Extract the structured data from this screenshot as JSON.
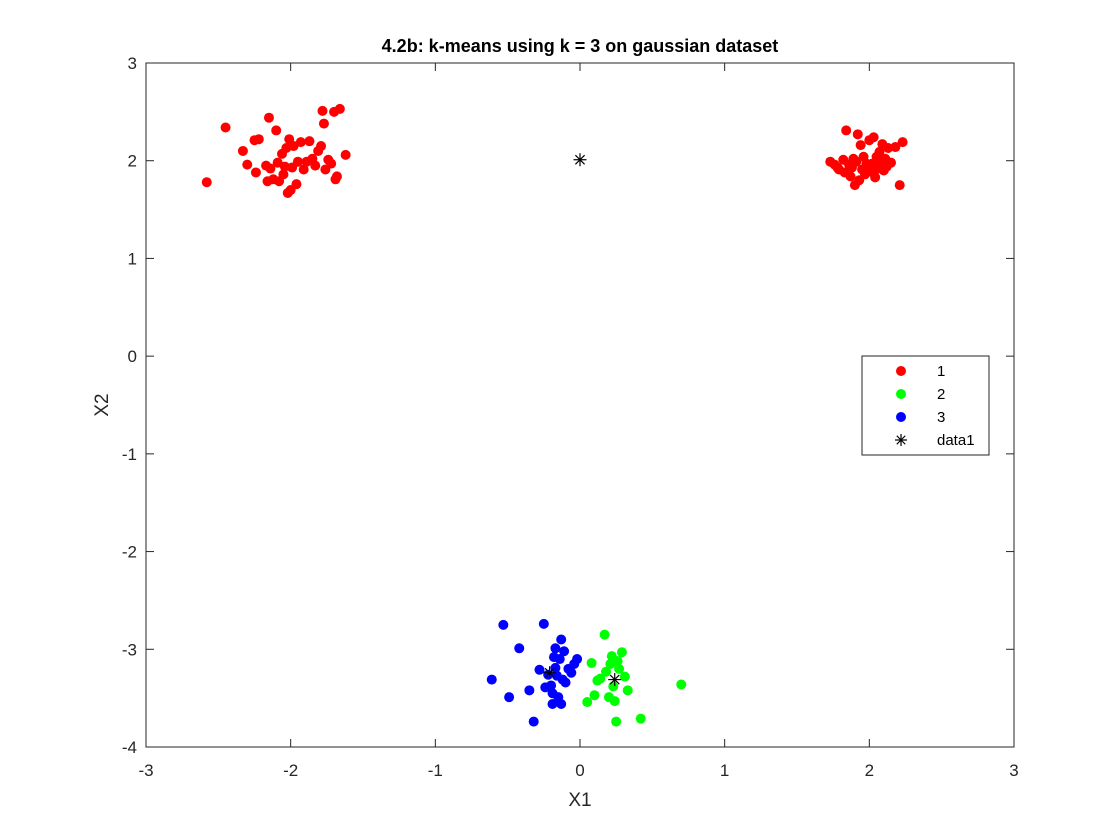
{
  "chart_data": {
    "type": "scatter",
    "title": "4.2b: k-means using k = 3 on gaussian dataset",
    "xlabel": "X1",
    "ylabel": "X2",
    "xlim": [
      -3,
      3
    ],
    "ylim": [
      -4,
      3
    ],
    "xticks": [
      "-3",
      "-2",
      "-1",
      "0",
      "1",
      "2",
      "3"
    ],
    "yticks": [
      "-4",
      "-3",
      "-2",
      "-1",
      "0",
      "1",
      "2",
      "3"
    ],
    "grid": false,
    "legend_position": "right",
    "series": [
      {
        "name": "1",
        "color": "#ff0000",
        "marker": "filled-circle",
        "points": [
          [
            -2.58,
            1.78
          ],
          [
            -2.45,
            2.34
          ],
          [
            -2.33,
            2.1
          ],
          [
            -2.3,
            1.96
          ],
          [
            -2.25,
            2.21
          ],
          [
            -2.24,
            1.88
          ],
          [
            -2.22,
            2.22
          ],
          [
            -2.17,
            1.95
          ],
          [
            -2.16,
            1.79
          ],
          [
            -2.15,
            2.44
          ],
          [
            -2.14,
            1.92
          ],
          [
            -2.12,
            1.81
          ],
          [
            -2.1,
            2.31
          ],
          [
            -2.09,
            1.98
          ],
          [
            -2.08,
            1.79
          ],
          [
            -2.06,
            2.07
          ],
          [
            -2.05,
            1.86
          ],
          [
            -2.04,
            1.94
          ],
          [
            -2.03,
            2.13
          ],
          [
            -2.02,
            1.67
          ],
          [
            -2.01,
            2.22
          ],
          [
            -2.0,
            1.7
          ],
          [
            -1.99,
            1.93
          ],
          [
            -1.98,
            2.15
          ],
          [
            -1.96,
            1.76
          ],
          [
            -1.95,
            1.99
          ],
          [
            -1.93,
            2.19
          ],
          [
            -1.91,
            1.91
          ],
          [
            -1.89,
            1.99
          ],
          [
            -1.87,
            2.2
          ],
          [
            -1.85,
            2.02
          ],
          [
            -1.83,
            1.95
          ],
          [
            -1.81,
            2.1
          ],
          [
            -1.79,
            2.15
          ],
          [
            -1.78,
            2.51
          ],
          [
            -1.77,
            2.38
          ],
          [
            -1.76,
            1.91
          ],
          [
            -1.74,
            2.01
          ],
          [
            -1.72,
            1.97
          ],
          [
            -1.7,
            2.5
          ],
          [
            -1.69,
            1.81
          ],
          [
            -1.68,
            1.84
          ],
          [
            -1.66,
            2.53
          ],
          [
            -1.62,
            2.06
          ],
          [
            1.73,
            1.99
          ],
          [
            1.76,
            1.96
          ],
          [
            1.78,
            1.93
          ],
          [
            1.79,
            1.91
          ],
          [
            1.82,
            2.01
          ],
          [
            1.83,
            1.88
          ],
          [
            1.84,
            2.31
          ],
          [
            1.86,
            1.96
          ],
          [
            1.87,
            1.84
          ],
          [
            1.88,
            1.93
          ],
          [
            1.89,
            2.02
          ],
          [
            1.9,
            1.75
          ],
          [
            1.91,
            1.99
          ],
          [
            1.92,
            2.27
          ],
          [
            1.93,
            1.8
          ],
          [
            1.94,
            2.16
          ],
          [
            1.95,
            1.91
          ],
          [
            1.96,
            2.04
          ],
          [
            1.97,
            1.86
          ],
          [
            1.98,
            1.97
          ],
          [
            2.0,
            2.21
          ],
          [
            2.01,
            1.89
          ],
          [
            2.02,
            1.97
          ],
          [
            2.03,
            2.24
          ],
          [
            2.04,
            1.83
          ],
          [
            2.05,
            2.04
          ],
          [
            2.06,
            1.92
          ],
          [
            2.07,
            2.09
          ],
          [
            2.08,
            1.97
          ],
          [
            2.09,
            2.17
          ],
          [
            2.1,
            1.9
          ],
          [
            2.11,
            2.02
          ],
          [
            2.12,
            1.94
          ],
          [
            2.13,
            2.13
          ],
          [
            2.15,
            1.98
          ],
          [
            2.18,
            2.14
          ],
          [
            2.21,
            1.75
          ],
          [
            2.23,
            2.19
          ]
        ]
      },
      {
        "name": "2",
        "color": "#00ff00",
        "marker": "filled-circle",
        "points": [
          [
            0.05,
            -3.54
          ],
          [
            0.08,
            -3.14
          ],
          [
            0.1,
            -3.47
          ],
          [
            0.12,
            -3.32
          ],
          [
            0.14,
            -3.3
          ],
          [
            0.17,
            -2.85
          ],
          [
            0.18,
            -3.23
          ],
          [
            0.2,
            -3.49
          ],
          [
            0.21,
            -3.15
          ],
          [
            0.22,
            -3.07
          ],
          [
            0.23,
            -3.38
          ],
          [
            0.24,
            -3.53
          ],
          [
            0.25,
            -3.74
          ],
          [
            0.26,
            -3.12
          ],
          [
            0.27,
            -3.2
          ],
          [
            0.29,
            -3.03
          ],
          [
            0.31,
            -3.28
          ],
          [
            0.33,
            -3.42
          ],
          [
            0.42,
            -3.71
          ],
          [
            0.7,
            -3.36
          ]
        ]
      },
      {
        "name": "3",
        "color": "#0000ff",
        "marker": "filled-circle",
        "points": [
          [
            -0.61,
            -3.31
          ],
          [
            -0.53,
            -2.75
          ],
          [
            -0.49,
            -3.49
          ],
          [
            -0.42,
            -2.99
          ],
          [
            -0.35,
            -3.42
          ],
          [
            -0.32,
            -3.74
          ],
          [
            -0.28,
            -3.21
          ],
          [
            -0.25,
            -2.74
          ],
          [
            -0.24,
            -3.39
          ],
          [
            -0.22,
            -3.26
          ],
          [
            -0.2,
            -3.37
          ],
          [
            -0.19,
            -3.45
          ],
          [
            -0.19,
            -3.56
          ],
          [
            -0.18,
            -3.08
          ],
          [
            -0.17,
            -3.19
          ],
          [
            -0.17,
            -2.99
          ],
          [
            -0.16,
            -3.27
          ],
          [
            -0.15,
            -3.49
          ],
          [
            -0.14,
            -3.1
          ],
          [
            -0.13,
            -3.56
          ],
          [
            -0.13,
            -2.9
          ],
          [
            -0.12,
            -3.31
          ],
          [
            -0.11,
            -3.02
          ],
          [
            -0.1,
            -3.34
          ],
          [
            -0.08,
            -3.2
          ],
          [
            -0.06,
            -3.24
          ],
          [
            -0.04,
            -3.15
          ],
          [
            -0.02,
            -3.1
          ]
        ]
      },
      {
        "name": "data1",
        "color": "#000000",
        "marker": "asterisk",
        "points": [
          [
            0.0,
            2.01
          ],
          [
            -0.21,
            -3.24
          ],
          [
            0.24,
            -3.31
          ]
        ]
      }
    ]
  }
}
